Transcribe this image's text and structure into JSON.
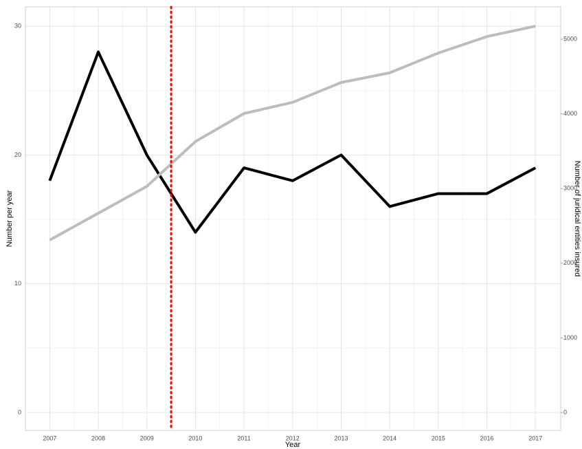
{
  "chart_data": {
    "type": "line",
    "x_label": "Year",
    "y_label": "Number per year",
    "y2_label": "Number of juridical entities insured",
    "x": [
      2007,
      2008,
      2009,
      2010,
      2011,
      2012,
      2013,
      2014,
      2015,
      2016,
      2017
    ],
    "series": [
      {
        "color": "#000000",
        "values": [
          18,
          28,
          20,
          14,
          19,
          18,
          20,
          16,
          17,
          17,
          19
        ]
      },
      {
        "color": "#bdbdbd",
        "axis": "y2",
        "values": [
          2310,
          2670,
          3030,
          3630,
          4005,
          4155,
          4420,
          4550,
          4815,
          5035,
          5175
        ]
      }
    ],
    "xlim": [
      2006.5,
      2017.52
    ],
    "xticks": [
      2007,
      2008,
      2009,
      2010,
      2011,
      2012,
      2013,
      2014,
      2015,
      2016,
      2017
    ],
    "ylim": [
      -1.39,
      31.5
    ],
    "yticks": [
      0,
      10,
      20,
      30
    ],
    "y2lim": [
      -239,
      5433
    ],
    "y2ticks": [
      0,
      1000,
      2000,
      3000,
      4000,
      5000
    ],
    "vlines": [
      {
        "x": 2009.5,
        "color": "#ff0000"
      }
    ],
    "grid": true
  }
}
